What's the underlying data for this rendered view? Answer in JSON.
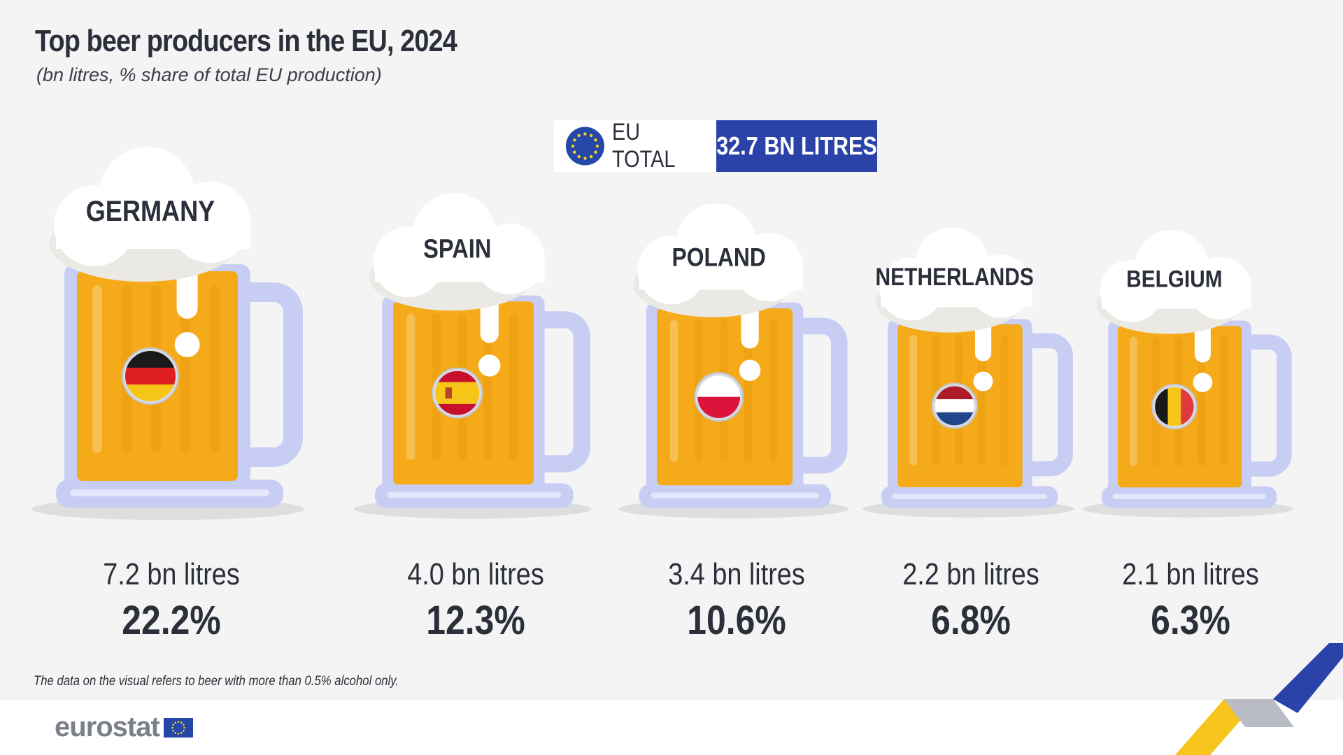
{
  "title": "Top beer producers in the EU, 2024",
  "subtitle": "(bn litres, % share of total EU production)",
  "eu_total": {
    "label": "EU TOTAL",
    "value_text": "32.7 BN LITRES",
    "icon": "eu-flag-icon"
  },
  "footnote": "The data on the visual refers to beer with more than 0.5% alcohol only.",
  "logo": {
    "text": "eurostat",
    "icon": "eu-flag-icon"
  },
  "colors": {
    "background": "#f4f4f4",
    "beer": "#f5aa19",
    "glass": "#c8cdf4",
    "foam": "#ffffff",
    "accent_blue": "#2b43a8",
    "accent_yellow": "#f7c51d",
    "text_dark": "#2b2f3a"
  },
  "chart_data": {
    "type": "bar",
    "total": {
      "value": 32.7,
      "unit": "bn litres"
    },
    "categories": [
      "GERMANY",
      "SPAIN",
      "POLAND",
      "NETHERLANDS",
      "BELGIUM"
    ],
    "values": [
      7.2,
      4.0,
      3.4,
      2.2,
      2.1
    ],
    "value_labels": [
      "7.2 bn litres",
      "4.0 bn litres",
      "3.4 bn litres",
      "2.2 bn litres",
      "2.1 bn litres"
    ],
    "shares": [
      22.2,
      12.3,
      10.6,
      6.8,
      6.3
    ],
    "share_labels": [
      "22.2%",
      "12.3%",
      "10.6%",
      "6.8%",
      "6.3%"
    ],
    "flag_icons": [
      "germany-flag-icon",
      "spain-flag-icon",
      "poland-flag-icon",
      "netherlands-flag-icon",
      "belgium-flag-icon"
    ]
  }
}
